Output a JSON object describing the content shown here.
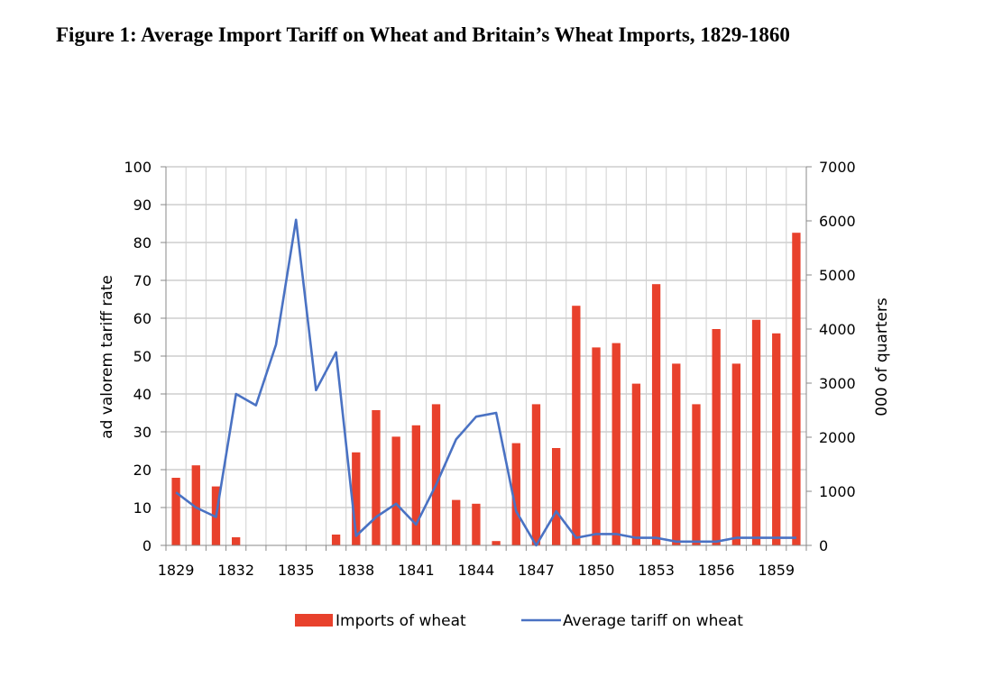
{
  "figure": {
    "title": "Figure 1: Average Import Tariff on Wheat and Britain’s Wheat Imports, 1829-1860"
  },
  "chart_data": {
    "type": "bar",
    "x": [
      1829,
      1830,
      1831,
      1832,
      1833,
      1834,
      1835,
      1836,
      1837,
      1838,
      1839,
      1840,
      1841,
      1842,
      1843,
      1844,
      1845,
      1846,
      1847,
      1848,
      1849,
      1850,
      1851,
      1852,
      1853,
      1854,
      1855,
      1856,
      1857,
      1858,
      1859,
      1860
    ],
    "x_tick_labels": [
      "1829",
      "1832",
      "1835",
      "1838",
      "1841",
      "1844",
      "1847",
      "1850",
      "1853",
      "1856",
      "1859"
    ],
    "series": [
      {
        "name": "Imports of wheat",
        "type": "bar",
        "axis": "right",
        "color": "#e8412c",
        "values": [
          1250,
          1480,
          1090,
          150,
          0,
          0,
          0,
          0,
          200,
          1720,
          2500,
          2010,
          2220,
          2610,
          840,
          770,
          80,
          1890,
          2610,
          1800,
          4430,
          3660,
          3740,
          2990,
          4830,
          3360,
          2610,
          4000,
          3360,
          4170,
          3920,
          5780
        ]
      },
      {
        "name": "Average tariff on wheat",
        "type": "line",
        "axis": "left",
        "color": "#4a72c3",
        "values": [
          14,
          10,
          7.5,
          40,
          37,
          53,
          86,
          41,
          51,
          2.5,
          7.5,
          11,
          5.5,
          16,
          28,
          34,
          35,
          9,
          0,
          9,
          2,
          3,
          3,
          2,
          2,
          1,
          1,
          1,
          2,
          2,
          2,
          2
        ]
      }
    ],
    "y_left": {
      "label": "ad valorem tariff rate",
      "lim": [
        0,
        100
      ],
      "ticks": [
        0,
        10,
        20,
        30,
        40,
        50,
        60,
        70,
        80,
        90,
        100
      ]
    },
    "y_right": {
      "label": "000 of quarters",
      "lim": [
        0,
        7000
      ],
      "ticks": [
        0,
        1000,
        2000,
        3000,
        4000,
        5000,
        6000,
        7000
      ]
    },
    "grid": true,
    "legend": "bottom"
  }
}
